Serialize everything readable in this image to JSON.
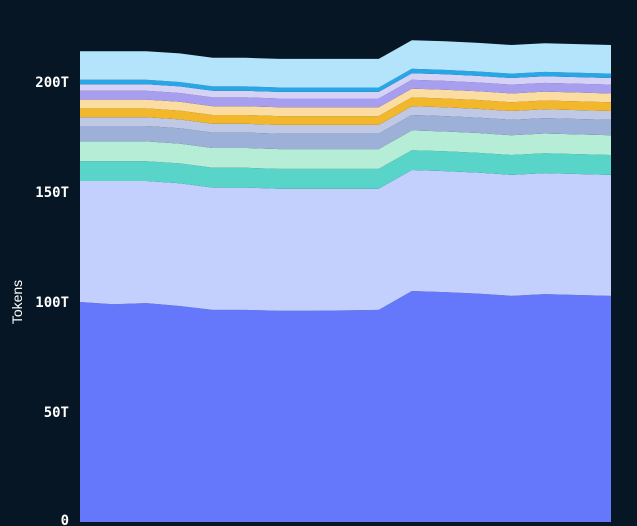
{
  "chart_data": {
    "type": "area",
    "stacked": true,
    "ylabel": "Tokens",
    "ylim": [
      0,
      230
    ],
    "y_ticks": [
      {
        "value": 0,
        "label": "0"
      },
      {
        "value": 50,
        "label": "50T"
      },
      {
        "value": 100,
        "label": "100T"
      },
      {
        "value": 150,
        "label": "150T"
      },
      {
        "value": 200,
        "label": "200T"
      }
    ],
    "x": [
      0,
      1,
      2,
      3,
      4,
      5,
      6,
      7,
      8,
      9,
      10,
      11,
      12,
      13,
      14,
      15,
      16
    ],
    "grid": false,
    "legend": "none",
    "series": [
      {
        "color": "#6577fb",
        "values": [
          100.0,
          99.0,
          99.5,
          98.2,
          96.4,
          96.4,
          96.0,
          96.0,
          96.2,
          96.4,
          105.0,
          104.5,
          103.8,
          102.8,
          103.6,
          103.2,
          102.8
        ]
      },
      {
        "color": "#c3d0fd",
        "values": [
          55.0,
          56.0,
          55.5,
          55.8,
          55.6,
          55.6,
          55.5,
          55.5,
          55.3,
          55.1,
          55.0,
          55.0,
          55.0,
          55.0,
          55.0,
          55.0,
          55.0
        ]
      },
      {
        "color": "#58d4c8",
        "values": [
          9.0,
          9.0,
          9.0,
          9.0,
          9.0,
          9.0,
          9.0,
          9.0,
          9.0,
          9.0,
          9.0,
          9.0,
          9.0,
          9.0,
          9.0,
          9.0,
          9.0
        ]
      },
      {
        "color": "#b5edd6",
        "values": [
          9.0,
          9.0,
          9.0,
          9.0,
          9.0,
          9.0,
          9.0,
          9.0,
          9.0,
          9.0,
          9.0,
          9.0,
          9.0,
          9.0,
          9.0,
          9.0,
          9.0
        ]
      },
      {
        "color": "#9db0d8",
        "values": [
          7.0,
          7.0,
          7.0,
          7.0,
          7.0,
          7.0,
          7.0,
          7.0,
          7.0,
          7.0,
          7.0,
          7.0,
          7.0,
          7.0,
          7.0,
          7.0,
          7.0
        ]
      },
      {
        "color": "#bfc8e4",
        "values": [
          4.0,
          4.0,
          4.0,
          4.0,
          4.0,
          4.0,
          4.0,
          4.0,
          4.0,
          4.0,
          4.0,
          4.0,
          4.0,
          4.0,
          4.0,
          4.0,
          4.0
        ]
      },
      {
        "color": "#f3b72c",
        "values": [
          4.0,
          4.0,
          4.0,
          4.0,
          4.0,
          4.0,
          4.0,
          4.0,
          4.0,
          4.0,
          4.0,
          4.0,
          4.0,
          4.0,
          4.0,
          4.0,
          4.0
        ]
      },
      {
        "color": "#fbdca1",
        "values": [
          4.0,
          4.0,
          4.0,
          4.0,
          4.0,
          4.0,
          4.0,
          4.0,
          4.0,
          4.0,
          4.0,
          4.0,
          4.0,
          4.0,
          4.0,
          4.0,
          4.0
        ]
      },
      {
        "color": "#a79ef0",
        "values": [
          4.0,
          4.0,
          4.0,
          4.0,
          4.0,
          4.0,
          4.0,
          4.0,
          4.0,
          4.0,
          4.0,
          4.0,
          4.0,
          4.0,
          4.0,
          4.0,
          4.0
        ]
      },
      {
        "color": "#d5d2f6",
        "values": [
          3.0,
          3.0,
          3.0,
          3.0,
          3.0,
          3.0,
          3.0,
          3.0,
          3.0,
          3.0,
          3.0,
          3.0,
          3.0,
          3.0,
          3.0,
          3.0,
          3.0
        ]
      },
      {
        "color": "#27a6e8",
        "values": [
          2.0,
          2.0,
          2.0,
          2.0,
          2.0,
          2.0,
          2.0,
          2.0,
          2.0,
          2.0,
          2.0,
          2.0,
          2.0,
          2.0,
          2.0,
          2.0,
          2.0
        ]
      },
      {
        "color": "#b4e4fb",
        "values": [
          13.0,
          13.0,
          13.0,
          13.0,
          13.0,
          13.0,
          13.0,
          13.0,
          13.0,
          13.0,
          13.0,
          13.0,
          13.0,
          13.0,
          13.0,
          13.0,
          13.0
        ]
      }
    ]
  }
}
